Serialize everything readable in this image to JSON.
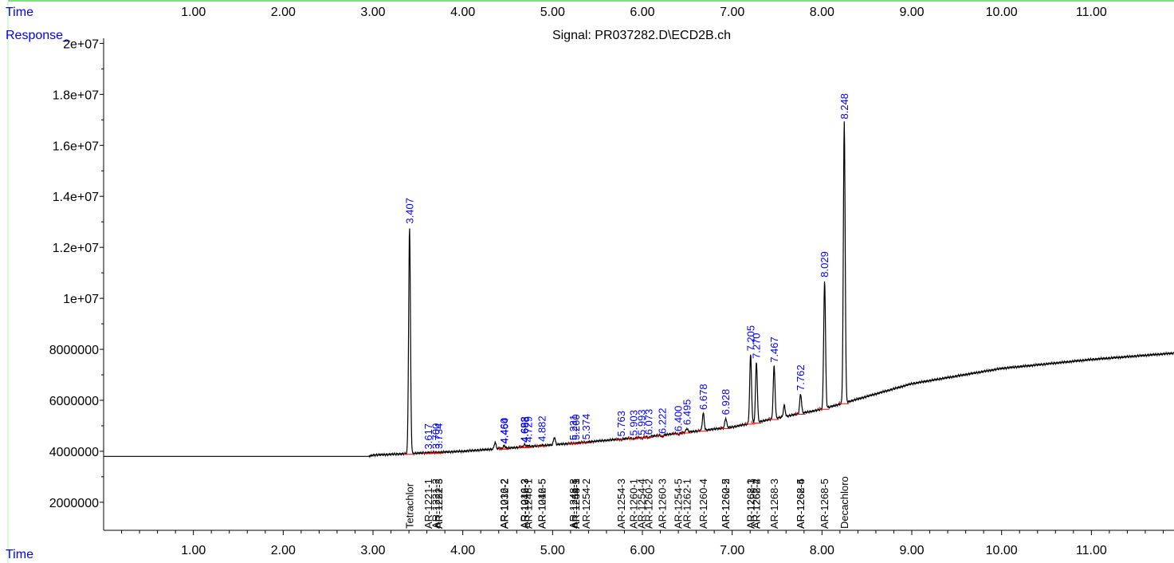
{
  "header": {
    "time_label_top": "Time",
    "time_label_bottom": "Time",
    "response_label": "Response_",
    "signal_title": "Signal: PR037282.D\\ECD2B.ch"
  },
  "colors": {
    "axis_label": "#0000ff",
    "trace": "#000000",
    "peak_label": "#0000ff",
    "compound_label": "#000000",
    "baseline_marker": "#ff0000",
    "top_rule": "#00c000"
  },
  "chart_data": {
    "type": "line",
    "title": "Signal: PR037282.D\\ECD2B.ch",
    "xlabel": "Time",
    "ylabel": "Response_",
    "xlim": [
      0.0,
      11.92
    ],
    "ylim": [
      900000,
      20200000
    ],
    "x_ticks": [
      1.0,
      2.0,
      3.0,
      4.0,
      5.0,
      6.0,
      7.0,
      8.0,
      9.0,
      10.0,
      11.0
    ],
    "x_tick_labels": [
      "1.00",
      "2.00",
      "3.00",
      "4.00",
      "5.00",
      "6.00",
      "7.00",
      "8.00",
      "9.00",
      "10.00",
      "11.00"
    ],
    "y_ticks": [
      2000000,
      4000000,
      6000000,
      8000000,
      10000000,
      12000000,
      14000000,
      16000000,
      18000000,
      20000000
    ],
    "y_tick_labels": [
      "2000000",
      "4000000",
      "6000000",
      "8000000",
      "1e+07",
      "1.2e+07",
      "1.4e+07",
      "1.6e+07",
      "1.8e+07",
      "2e+07"
    ],
    "baseline": [
      {
        "t": 0.0,
        "r": 3800000
      },
      {
        "t": 2.95,
        "r": 3800000
      },
      {
        "t": 3.0,
        "r": 3850000
      },
      {
        "t": 4.0,
        "r": 4000000
      },
      {
        "t": 5.0,
        "r": 4250000
      },
      {
        "t": 6.0,
        "r": 4550000
      },
      {
        "t": 7.0,
        "r": 4950000
      },
      {
        "t": 8.0,
        "r": 5650000
      },
      {
        "t": 8.3,
        "r": 5950000
      },
      {
        "t": 9.0,
        "r": 6650000
      },
      {
        "t": 10.0,
        "r": 7250000
      },
      {
        "t": 11.0,
        "r": 7600000
      },
      {
        "t": 11.92,
        "r": 7850000
      }
    ],
    "peaks": [
      {
        "rt": 3.407,
        "label": "3.407",
        "apex": 12800000
      },
      {
        "rt": 3.617,
        "label": "3.617",
        "apex": 3950000
      },
      {
        "rt": 3.7,
        "label": "3.700",
        "apex": 3960000
      },
      {
        "rt": 3.734,
        "label": "3.734",
        "apex": 3960000
      },
      {
        "rt": 4.36,
        "label": "",
        "apex": 4350000
      },
      {
        "rt": 4.46,
        "label": "4.460",
        "apex": 4170000
      },
      {
        "rt": 4.464,
        "label": "4.464",
        "apex": 4170000
      },
      {
        "rt": 4.688,
        "label": "4.688",
        "apex": 4220000
      },
      {
        "rt": 4.693,
        "label": "4.693",
        "apex": 4220000
      },
      {
        "rt": 4.729,
        "label": "4.729",
        "apex": 4230000
      },
      {
        "rt": 4.882,
        "label": "4.882",
        "apex": 4250000
      },
      {
        "rt": 5.02,
        "label": "",
        "apex": 4550000
      },
      {
        "rt": 5.231,
        "label": "5.231",
        "apex": 4300000
      },
      {
        "rt": 5.26,
        "label": "5.260",
        "apex": 4310000
      },
      {
        "rt": 5.374,
        "label": "5.374",
        "apex": 4330000
      },
      {
        "rt": 5.763,
        "label": "5.763",
        "apex": 4450000
      },
      {
        "rt": 5.903,
        "label": "5.903",
        "apex": 4480000
      },
      {
        "rt": 5.993,
        "label": "5.993",
        "apex": 4500000
      },
      {
        "rt": 6.073,
        "label": "6.073",
        "apex": 4520000
      },
      {
        "rt": 6.222,
        "label": "6.222",
        "apex": 4560000
      },
      {
        "rt": 6.4,
        "label": "6.400",
        "apex": 4650000
      },
      {
        "rt": 6.495,
        "label": "6.495",
        "apex": 4900000
      },
      {
        "rt": 6.678,
        "label": "6.678",
        "apex": 5500000
      },
      {
        "rt": 6.928,
        "label": "6.928",
        "apex": 5300000
      },
      {
        "rt": 7.205,
        "label": "7.205",
        "apex": 7800000
      },
      {
        "rt": 7.27,
        "label": "7.270",
        "apex": 7500000
      },
      {
        "rt": 7.467,
        "label": "7.467",
        "apex": 7350000
      },
      {
        "rt": 7.58,
        "label": "",
        "apex": 5800000
      },
      {
        "rt": 7.762,
        "label": "7.762",
        "apex": 6250000
      },
      {
        "rt": 8.029,
        "label": "8.029",
        "apex": 10700000
      },
      {
        "rt": 8.248,
        "label": "8.248",
        "apex": 16900000
      }
    ],
    "compounds": [
      {
        "rt": 3.407,
        "label": "Tetrachlor"
      },
      {
        "rt": 3.617,
        "label": "AR-1221-1"
      },
      {
        "rt": 3.7,
        "label": "AR-1221-2"
      },
      {
        "rt": 3.734,
        "label": "AR-1232-3"
      },
      {
        "rt": 3.734,
        "label": "AR-1221-3"
      },
      {
        "rt": 4.46,
        "label": "AR-1016-2"
      },
      {
        "rt": 4.464,
        "label": "AR-1232-2"
      },
      {
        "rt": 4.688,
        "label": "AR-1016-3"
      },
      {
        "rt": 4.693,
        "label": "AR-1242-3"
      },
      {
        "rt": 4.729,
        "label": "AR-1248-1"
      },
      {
        "rt": 4.882,
        "label": "AR-1016-5"
      },
      {
        "rt": 4.882,
        "label": "AR-1242-5"
      },
      {
        "rt": 5.231,
        "label": "AR-1248-3"
      },
      {
        "rt": 5.26,
        "label": "AR-1254-1"
      },
      {
        "rt": 5.26,
        "label": "AR-1248-5"
      },
      {
        "rt": 5.374,
        "label": "AR-1254-2"
      },
      {
        "rt": 5.763,
        "label": "AR-1254-3"
      },
      {
        "rt": 5.903,
        "label": "AR-1260-1"
      },
      {
        "rt": 5.993,
        "label": "AR-1254-4"
      },
      {
        "rt": 6.073,
        "label": "AR-1260-2"
      },
      {
        "rt": 6.222,
        "label": "AR-1260-3"
      },
      {
        "rt": 6.4,
        "label": "AR-1254-5"
      },
      {
        "rt": 6.495,
        "label": "AR-1262-1"
      },
      {
        "rt": 6.678,
        "label": "AR-1260-4"
      },
      {
        "rt": 6.928,
        "label": "AR-1262-2"
      },
      {
        "rt": 6.928,
        "label": "AR-1260-5"
      },
      {
        "rt": 7.205,
        "label": "AR-1268-1"
      },
      {
        "rt": 7.205,
        "label": "AR-1262-3"
      },
      {
        "rt": 7.27,
        "label": "AR-1268-2"
      },
      {
        "rt": 7.27,
        "label": "AR-1262-4"
      },
      {
        "rt": 7.467,
        "label": "AR-1268-3"
      },
      {
        "rt": 7.762,
        "label": "AR-1262-5"
      },
      {
        "rt": 7.762,
        "label": "AR-1268-4"
      },
      {
        "rt": 8.029,
        "label": "AR-1268-5"
      },
      {
        "rt": 8.248,
        "label": "Decachloro"
      }
    ],
    "grid": false,
    "legend": "none"
  }
}
